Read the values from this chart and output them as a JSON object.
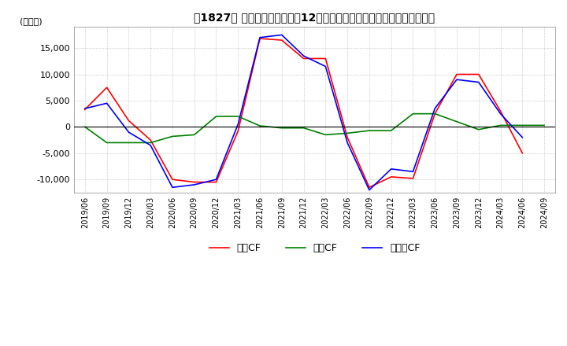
{
  "title": "　1827　キャッシュフローの12か月移動合計の対前年同期増減額の推移",
  "ylabel": "(百万円)",
  "ylim": [
    -12500,
    19000
  ],
  "yticks": [
    -10000,
    -5000,
    0,
    5000,
    10000,
    15000
  ],
  "x_labels": [
    "2019/06",
    "2019/09",
    "2019/12",
    "2020/03",
    "2020/06",
    "2020/09",
    "2020/12",
    "2021/03",
    "2021/06",
    "2021/09",
    "2021/12",
    "2022/03",
    "2022/06",
    "2022/09",
    "2022/12",
    "2023/03",
    "2023/06",
    "2023/09",
    "2023/12",
    "2024/03",
    "2024/06",
    "2024/09"
  ],
  "operating_cf": [
    3300,
    7500,
    1200,
    -2500,
    -10000,
    -10500,
    -10500,
    -800,
    16800,
    16500,
    13000,
    13000,
    -2000,
    -11500,
    -9500,
    -9800,
    2500,
    10000,
    10000,
    3000,
    -5000,
    null
  ],
  "investing_cf": [
    0,
    -3000,
    -3000,
    -3000,
    -1800,
    -1500,
    2000,
    2000,
    200,
    -200,
    -200,
    -1500,
    -1200,
    -700,
    -700,
    2500,
    2500,
    1000,
    -500,
    300,
    300,
    300
  ],
  "free_cf": [
    3500,
    4500,
    -1000,
    -3500,
    -11500,
    -11000,
    -10000,
    500,
    17000,
    17500,
    13500,
    11500,
    -3000,
    -12000,
    -8000,
    -8500,
    3500,
    9000,
    8500,
    2500,
    -2000,
    null
  ],
  "operating_color": "#ff0000",
  "investing_color": "#008000",
  "free_color": "#0000ff",
  "background_color": "#ffffff",
  "grid_color": "#aaaaaa",
  "legend_labels": [
    "営業CF",
    "投資CF",
    "フリーCF"
  ]
}
